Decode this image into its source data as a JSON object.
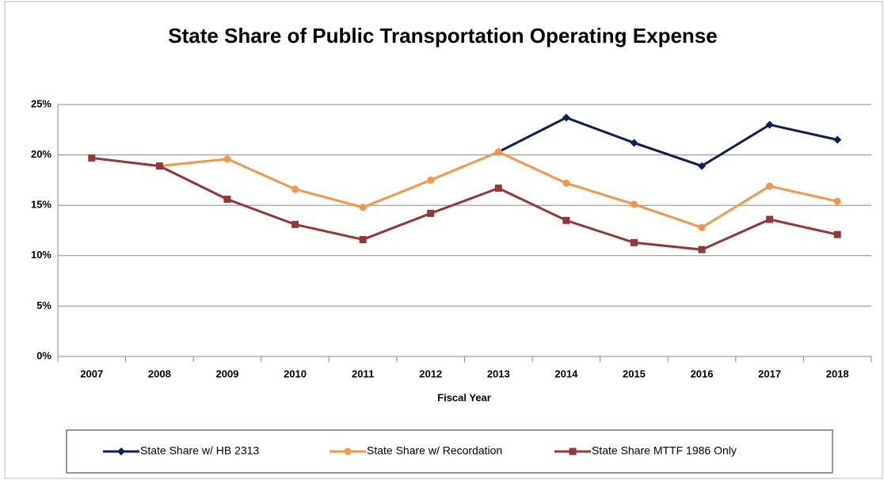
{
  "chart_data": {
    "type": "line",
    "title": "State Share of Public Transportation Operating Expense",
    "x_label": "Fiscal Year",
    "categories": [
      "2007",
      "2008",
      "2009",
      "2010",
      "2011",
      "2012",
      "2013",
      "2014",
      "2015",
      "2016",
      "2017",
      "2018"
    ],
    "series": [
      {
        "name": "State Share w/ HB 2313",
        "color": "#0d1f5c",
        "marker": "diamond",
        "values": [
          null,
          null,
          null,
          null,
          null,
          null,
          20.3,
          23.7,
          21.2,
          18.9,
          23.0,
          21.5
        ]
      },
      {
        "name": "State Share w/ Recordation",
        "color": "#f79646",
        "marker": "circle",
        "values": [
          null,
          18.9,
          19.6,
          16.6,
          14.8,
          17.5,
          20.3,
          17.2,
          15.1,
          12.8,
          16.9,
          15.4
        ]
      },
      {
        "name": "State Share MTTF 1986 Only",
        "color": "#953735",
        "marker": "square",
        "values": [
          19.7,
          18.9,
          15.6,
          13.1,
          11.6,
          14.2,
          16.7,
          13.5,
          11.3,
          10.6,
          13.6,
          12.1
        ]
      }
    ],
    "ylim": [
      0,
      25
    ],
    "yticks": [
      {
        "value": 0,
        "label": "0%"
      },
      {
        "value": 5,
        "label": "5%"
      },
      {
        "value": 10,
        "label": "10%"
      },
      {
        "value": 15,
        "label": "15%"
      },
      {
        "value": 20,
        "label": "20%"
      },
      {
        "value": 25,
        "label": "25%"
      }
    ],
    "grid": true,
    "legend": "bottom"
  }
}
